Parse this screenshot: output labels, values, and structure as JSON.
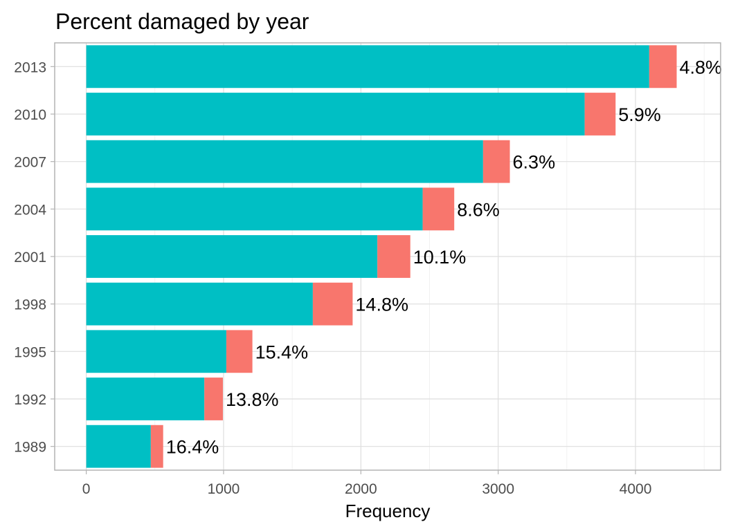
{
  "chart_data": {
    "type": "bar",
    "orientation": "horizontal",
    "stacked": true,
    "title": "Percent damaged by year",
    "xlabel": "Frequency",
    "ylabel": "",
    "categories": [
      "1989",
      "1992",
      "1995",
      "1998",
      "2001",
      "2004",
      "2007",
      "2010",
      "2013"
    ],
    "series": [
      {
        "color": "#00BFC4",
        "values": [
          470,
          860,
          1020,
          1650,
          2120,
          2450,
          2890,
          3630,
          4100
        ]
      },
      {
        "color": "#F8766D",
        "values": [
          90,
          135,
          190,
          290,
          240,
          230,
          195,
          225,
          200
        ]
      }
    ],
    "labels": [
      "16.4%",
      "13.8%",
      "15.4%",
      "14.8%",
      "10.1%",
      "8.6%",
      "6.3%",
      "5.9%",
      "4.8%"
    ],
    "xlim": [
      -230,
      4620
    ],
    "xticks": [
      0,
      1000,
      2000,
      3000,
      4000
    ],
    "xtick_labels": [
      "0",
      "1000",
      "2000",
      "3000",
      "4000"
    ],
    "grid": true,
    "legend": "none"
  }
}
